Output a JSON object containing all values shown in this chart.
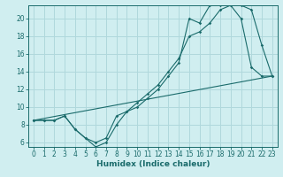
{
  "xlabel": "Humidex (Indice chaleur)",
  "ylabel": "",
  "xlim": [
    -0.5,
    23.5
  ],
  "ylim": [
    5.5,
    21.5
  ],
  "xticks": [
    0,
    1,
    2,
    3,
    4,
    5,
    6,
    7,
    8,
    9,
    10,
    11,
    12,
    13,
    14,
    15,
    16,
    17,
    18,
    19,
    20,
    21,
    22,
    23
  ],
  "yticks": [
    6,
    8,
    10,
    12,
    14,
    16,
    18,
    20
  ],
  "bg_color": "#d0eef0",
  "line_color": "#1a6b6b",
  "grid_color": "#b0d8dc",
  "line1_x": [
    0,
    1,
    2,
    3,
    4,
    5,
    6,
    7,
    8,
    9,
    10,
    11,
    12,
    13,
    14,
    15,
    16,
    17,
    18,
    19,
    20,
    21,
    22,
    23
  ],
  "line1_y": [
    8.5,
    8.5,
    8.5,
    9.0,
    7.5,
    6.5,
    6.0,
    6.5,
    9.0,
    9.5,
    10.5,
    11.5,
    12.5,
    14.0,
    15.5,
    18.0,
    18.5,
    19.5,
    21.0,
    21.5,
    21.5,
    21.0,
    17.0,
    13.5
  ],
  "line2_x": [
    0,
    1,
    2,
    3,
    4,
    5,
    6,
    7,
    8,
    9,
    10,
    11,
    12,
    13,
    14,
    15,
    16,
    17,
    18,
    19,
    20,
    21,
    22,
    23
  ],
  "line2_y": [
    8.5,
    8.5,
    8.5,
    9.0,
    7.5,
    6.5,
    5.5,
    6.0,
    8.0,
    9.5,
    10.0,
    11.0,
    12.0,
    13.5,
    15.0,
    20.0,
    19.5,
    21.5,
    21.5,
    21.5,
    20.0,
    14.5,
    13.5,
    13.5
  ],
  "line3_x": [
    0,
    23
  ],
  "line3_y": [
    8.5,
    13.5
  ]
}
